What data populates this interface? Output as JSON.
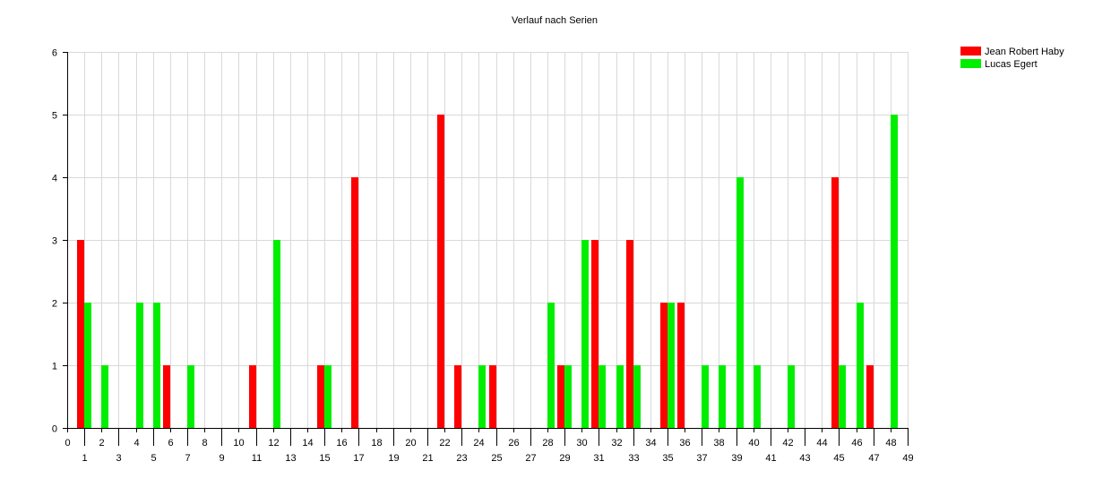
{
  "chart_data": {
    "type": "bar",
    "title": "Verlauf nach Serien",
    "xlabel": "",
    "ylabel": "",
    "xlim": [
      0,
      49
    ],
    "ylim": [
      0,
      6
    ],
    "x_ticks": [
      0,
      1,
      2,
      3,
      4,
      5,
      6,
      7,
      8,
      9,
      10,
      11,
      12,
      13,
      14,
      15,
      16,
      17,
      18,
      19,
      20,
      21,
      22,
      23,
      24,
      25,
      26,
      27,
      28,
      29,
      30,
      31,
      32,
      33,
      34,
      35,
      36,
      37,
      38,
      39,
      40,
      41,
      42,
      43,
      44,
      45,
      46,
      47,
      48,
      49
    ],
    "y_ticks": [
      0,
      1,
      2,
      3,
      4,
      5,
      6
    ],
    "grid": true,
    "legend_position": "top-right",
    "series": [
      {
        "name": "Jean Robert Haby",
        "color": "#ff0000",
        "points": [
          [
            1,
            3
          ],
          [
            6,
            1
          ],
          [
            11,
            1
          ],
          [
            15,
            1
          ],
          [
            17,
            4
          ],
          [
            22,
            5
          ],
          [
            23,
            1
          ],
          [
            25,
            1
          ],
          [
            29,
            1
          ],
          [
            31,
            3
          ],
          [
            33,
            3
          ],
          [
            35,
            2
          ],
          [
            36,
            2
          ],
          [
            45,
            4
          ],
          [
            47,
            1
          ]
        ]
      },
      {
        "name": "Lucas Egert",
        "color": "#00ee00",
        "points": [
          [
            1,
            2
          ],
          [
            2,
            1
          ],
          [
            4,
            2
          ],
          [
            5,
            2
          ],
          [
            7,
            1
          ],
          [
            12,
            3
          ],
          [
            15,
            1
          ],
          [
            24,
            1
          ],
          [
            28,
            2
          ],
          [
            29,
            1
          ],
          [
            30,
            3
          ],
          [
            31,
            1
          ],
          [
            32,
            1
          ],
          [
            33,
            1
          ],
          [
            35,
            2
          ],
          [
            37,
            1
          ],
          [
            38,
            1
          ],
          [
            39,
            4
          ],
          [
            40,
            1
          ],
          [
            42,
            1
          ],
          [
            45,
            1
          ],
          [
            46,
            2
          ],
          [
            48,
            5
          ]
        ]
      }
    ]
  }
}
